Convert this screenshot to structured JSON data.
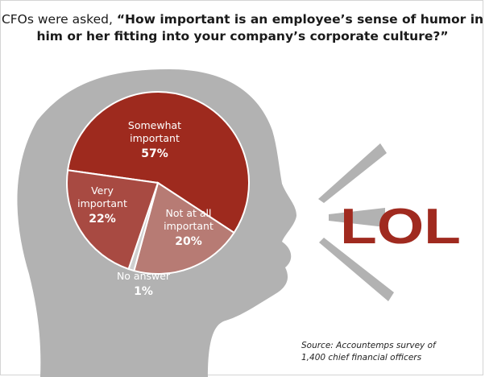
{
  "title": {
    "prefix": "CFOs were asked, ",
    "question": "“How important is an employee’s sense of humor in him or her fitting into your company’s corporate culture?”"
  },
  "chart_data": {
    "type": "pie",
    "title": "CFOs were asked, “How important is an employee’s sense of humor in him or her fitting into your company’s corporate culture?”",
    "slices": [
      {
        "label_lines": [
          "Somewhat",
          "important"
        ],
        "value": 57,
        "pct_label": "57%",
        "color": "#9e2a1e"
      },
      {
        "label_lines": [
          "Not at all",
          "important"
        ],
        "value": 20,
        "pct_label": "20%",
        "color": "#b77b74"
      },
      {
        "label_lines": [
          "No answer"
        ],
        "value": 1,
        "pct_label": "1%",
        "color": "#cfcfcf"
      },
      {
        "label_lines": [
          "Very",
          "important"
        ],
        "value": 22,
        "pct_label": "22%",
        "color": "#a84a42"
      }
    ],
    "start_angle_deg": 172,
    "direction": "clockwise"
  },
  "graphic": {
    "word": "LOL",
    "word_color": "#a02a1f",
    "head_color": "#b2b2b2"
  },
  "source": {
    "line1": "Source: Accountemps survey of",
    "line2": "1,400 chief financial officers"
  }
}
